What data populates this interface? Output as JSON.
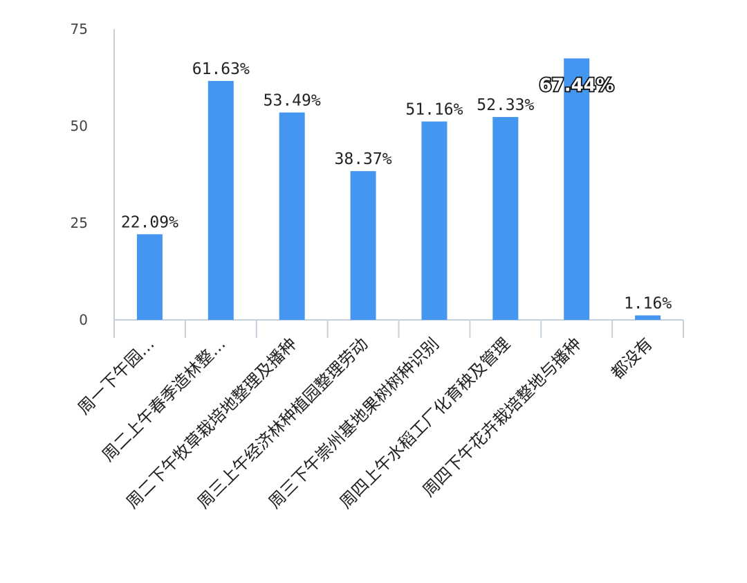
{
  "chart_data": {
    "type": "bar",
    "title": "",
    "xlabel": "",
    "ylabel": "",
    "ylim": [
      0,
      75
    ],
    "yticks": [
      0,
      25,
      50,
      75
    ],
    "grid": false,
    "categories": [
      "周一下午园…",
      "周二上午春季造林整…",
      "周二下午牧草栽培地整理及播种",
      "周三上午经济林种植园整理劳动",
      "周三下午崇州基地果树树种识别",
      "周四上午水稻工厂化育秧及管理",
      "周四下午花卉栽培整地与播种",
      "都没有"
    ],
    "values": [
      22.09,
      61.63,
      53.49,
      38.37,
      51.16,
      52.33,
      67.44,
      1.16
    ],
    "data_labels": [
      "22.09%",
      "61.63%",
      "53.49%",
      "38.37%",
      "51.16%",
      "52.33%",
      "67.44%",
      "1.16%"
    ],
    "highlighted_label_index": 6,
    "colors": {
      "bar": "#4596F0",
      "axis": "#C5D0DC",
      "text": "#222222"
    }
  }
}
